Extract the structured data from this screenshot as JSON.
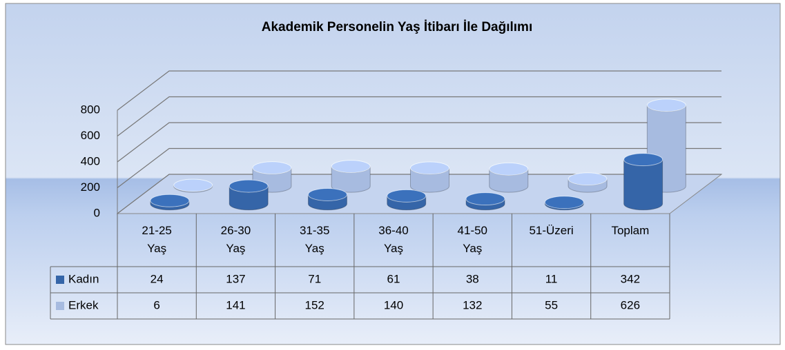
{
  "chart_data": {
    "type": "bar3d",
    "title": "Akademik Personelin Yaş İtibarı İle Dağılımı",
    "categories": [
      "21-25 Yaş",
      "26-30 Yaş",
      "31-35 Yaş",
      "36-40 Yaş",
      "41-50 Yaş",
      "51-Üzeri",
      "Toplam"
    ],
    "series": [
      {
        "name": "Kadın",
        "color": "#3565a8",
        "values": [
          24,
          137,
          71,
          61,
          38,
          11,
          342
        ]
      },
      {
        "name": "Erkek",
        "color": "#a7bbe0",
        "values": [
          6,
          141,
          152,
          140,
          132,
          55,
          626
        ]
      }
    ],
    "ylim": [
      0,
      800
    ],
    "yticks": [
      0,
      200,
      400,
      600,
      800
    ],
    "grid": true,
    "data_table": true
  }
}
